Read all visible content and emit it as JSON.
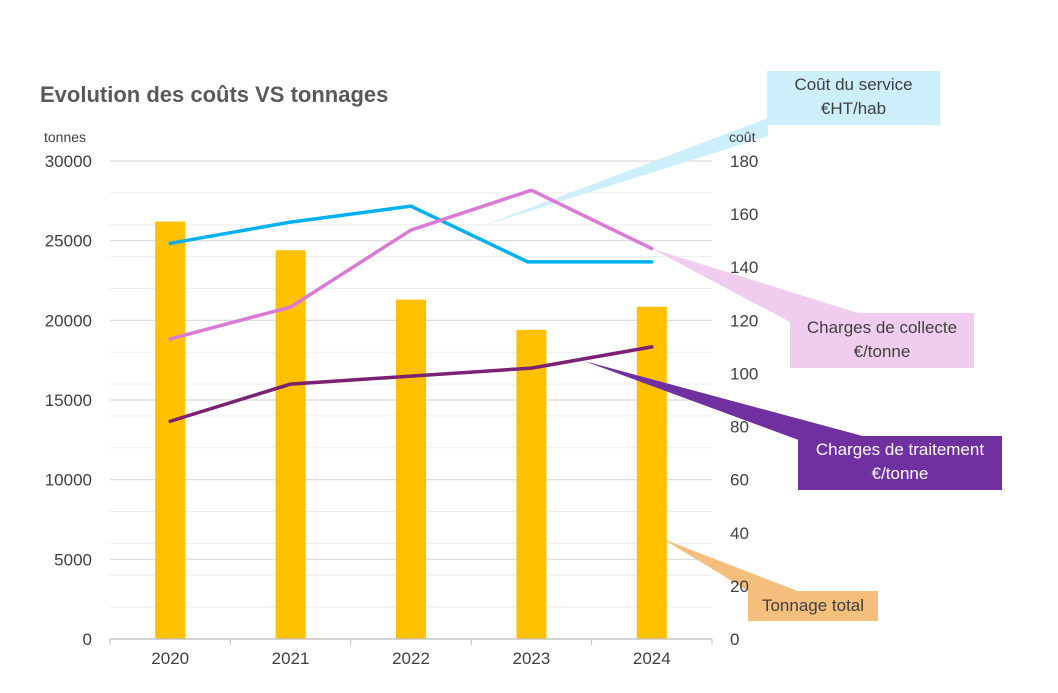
{
  "colors": {
    "bars": "#FFC000",
    "cout_service": "#00B0F0",
    "charges_collecte": "#D97AD7",
    "charges_traitement": "#7B2173",
    "callout_service_bg": "#CDEEFB",
    "callout_collecte_bg": "#F0CDEE",
    "callout_traitement_bg": "#7030A0",
    "callout_tonnage_bg": "#F4BE7C",
    "grid": "#D9D9D9",
    "axis_text": "#404040"
  },
  "chart_data": {
    "type": "bar+line",
    "title": "Evolution des coûts VS tonnages",
    "categories": [
      "2020",
      "2021",
      "2022",
      "2023",
      "2024"
    ],
    "y_left": {
      "label": "tonnes",
      "min": 0,
      "max": 30000,
      "ticks": [
        "0",
        "5000",
        "10000",
        "15000",
        "20000",
        "25000",
        "30000"
      ],
      "tick_values": [
        0,
        5000,
        10000,
        15000,
        20000,
        25000,
        30000
      ]
    },
    "y_right": {
      "label": "coût",
      "min": 0,
      "max": 180,
      "ticks": [
        "0",
        "20",
        "40",
        "60",
        "80",
        "100",
        "120",
        "140",
        "160",
        "180"
      ],
      "tick_values": [
        0,
        20,
        40,
        60,
        80,
        100,
        120,
        140,
        160,
        180
      ]
    },
    "bar_series": {
      "name": "Tonnage total",
      "axis": "left",
      "values": [
        26200,
        24400,
        21300,
        19400,
        20850
      ]
    },
    "line_series": [
      {
        "name": "Coût du service €HT/hab",
        "axis": "right",
        "values": [
          149,
          157,
          163,
          142,
          142
        ]
      },
      {
        "name": "Charges de collecte €/tonne",
        "axis": "right",
        "values": [
          113,
          125,
          154,
          169,
          147
        ]
      },
      {
        "name": "Charges de traitement €/tonne",
        "axis": "right",
        "values": [
          82,
          96,
          99,
          102,
          110
        ]
      }
    ],
    "grid": true
  },
  "callouts": {
    "service": {
      "line1": "Coût du service",
      "line2": "€HT/hab"
    },
    "collecte": {
      "line1": "Charges de collecte",
      "line2": "€/tonne"
    },
    "traitement": {
      "line1": "Charges de traitement",
      "line2": "€/tonne"
    },
    "tonnage": {
      "line1": "Tonnage total"
    }
  }
}
